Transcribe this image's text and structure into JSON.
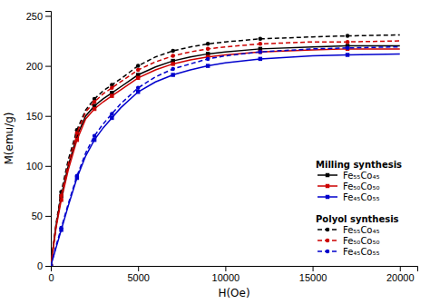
{
  "chart_data": {
    "type": "line",
    "xlabel": "H(Oe)",
    "ylabel": "M(emu/g)",
    "xlim": [
      0,
      21000
    ],
    "ylim": [
      0,
      255
    ],
    "xticks": [
      0,
      5000,
      10000,
      15000,
      20000
    ],
    "yticks": [
      0,
      50,
      100,
      150,
      200,
      250
    ],
    "grid": false,
    "legend": "right",
    "x": [
      0,
      300,
      600,
      1000,
      1500,
      2000,
      2500,
      3000,
      3500,
      4000,
      5000,
      6000,
      7000,
      8000,
      9000,
      10000,
      12000,
      15000,
      17000,
      20000
    ],
    "series": [
      {
        "name": "Fe₅₅Co₄₅",
        "group": "Milling synthesis",
        "color": "#000000",
        "marker": "square",
        "line_style": "solid",
        "values": [
          0,
          40,
          70,
          100,
          130,
          150,
          160,
          167,
          173,
          179,
          191,
          199,
          205,
          209,
          212,
          214,
          217,
          219,
          220,
          220
        ]
      },
      {
        "name": "Fe₅₀Co₅₀",
        "group": "Milling synthesis",
        "color": "#cc0000",
        "marker": "square",
        "line_style": "solid",
        "values": [
          0,
          38,
          66,
          96,
          126,
          147,
          157,
          164,
          170,
          176,
          188,
          196,
          202,
          206,
          209,
          211,
          214,
          216,
          217,
          217
        ]
      },
      {
        "name": "Fe₄₅Co₅₅",
        "group": "Milling synthesis",
        "color": "#0000cc",
        "marker": "square",
        "line_style": "solid",
        "values": [
          0,
          18,
          36,
          60,
          88,
          110,
          126,
          138,
          148,
          158,
          174,
          184,
          191,
          196,
          200,
          203,
          207,
          210,
          211,
          212
        ]
      },
      {
        "name": "Fe₅₅Co₄₅",
        "group": "Polyol synthesis",
        "color": "#000000",
        "marker": "circle",
        "line_style": "dashed",
        "values": [
          0,
          42,
          74,
          106,
          136,
          156,
          167,
          175,
          181,
          187,
          200,
          209,
          215,
          219,
          222,
          224,
          227,
          229,
          230,
          231
        ]
      },
      {
        "name": "Fe₅₀Co₅₀",
        "group": "Polyol synthesis",
        "color": "#cc0000",
        "marker": "circle",
        "line_style": "dashed",
        "values": [
          0,
          40,
          70,
          102,
          133,
          154,
          164,
          172,
          178,
          184,
          196,
          204,
          210,
          214,
          217,
          219,
          222,
          224,
          224,
          225
        ]
      },
      {
        "name": "Fe₄₅Co₅₅",
        "group": "Polyol synthesis",
        "color": "#0000cc",
        "marker": "circle",
        "line_style": "dashed",
        "values": [
          0,
          20,
          38,
          62,
          90,
          113,
          130,
          142,
          152,
          162,
          178,
          189,
          197,
          202,
          207,
          210,
          214,
          217,
          218,
          219
        ]
      }
    ]
  }
}
